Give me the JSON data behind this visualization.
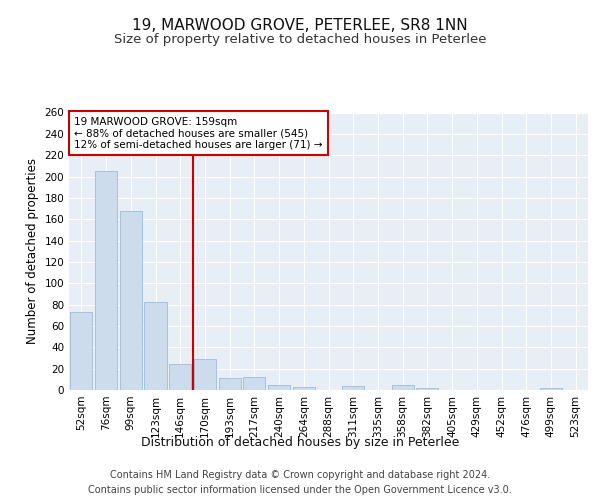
{
  "title": "19, MARWOOD GROVE, PETERLEE, SR8 1NN",
  "subtitle": "Size of property relative to detached houses in Peterlee",
  "xlabel": "Distribution of detached houses by size in Peterlee",
  "ylabel": "Number of detached properties",
  "categories": [
    "52sqm",
    "76sqm",
    "99sqm",
    "123sqm",
    "146sqm",
    "170sqm",
    "193sqm",
    "217sqm",
    "240sqm",
    "264sqm",
    "288sqm",
    "311sqm",
    "335sqm",
    "358sqm",
    "382sqm",
    "405sqm",
    "429sqm",
    "452sqm",
    "476sqm",
    "499sqm",
    "523sqm"
  ],
  "values": [
    73,
    205,
    168,
    82,
    24,
    29,
    11,
    12,
    5,
    3,
    0,
    4,
    0,
    5,
    2,
    0,
    0,
    0,
    0,
    2,
    0
  ],
  "bar_color": "#ccdcec",
  "bar_edge_color": "#9bbdd6",
  "vline_x_idx": 4.5,
  "vline_color": "#cc0000",
  "annotation_text": "19 MARWOOD GROVE: 159sqm\n← 88% of detached houses are smaller (545)\n12% of semi-detached houses are larger (71) →",
  "annotation_box_color": "#ffffff",
  "annotation_box_edge": "#cc0000",
  "ylim": [
    0,
    260
  ],
  "yticks": [
    0,
    20,
    40,
    60,
    80,
    100,
    120,
    140,
    160,
    180,
    200,
    220,
    240,
    260
  ],
  "background_color": "#e8eef5",
  "grid_color": "#ffffff",
  "footer": "Contains HM Land Registry data © Crown copyright and database right 2024.\nContains public sector information licensed under the Open Government Licence v3.0.",
  "title_fontsize": 11,
  "subtitle_fontsize": 9.5,
  "xlabel_fontsize": 9,
  "ylabel_fontsize": 8.5,
  "footer_fontsize": 7,
  "tick_fontsize": 7.5,
  "annot_fontsize": 7.5
}
